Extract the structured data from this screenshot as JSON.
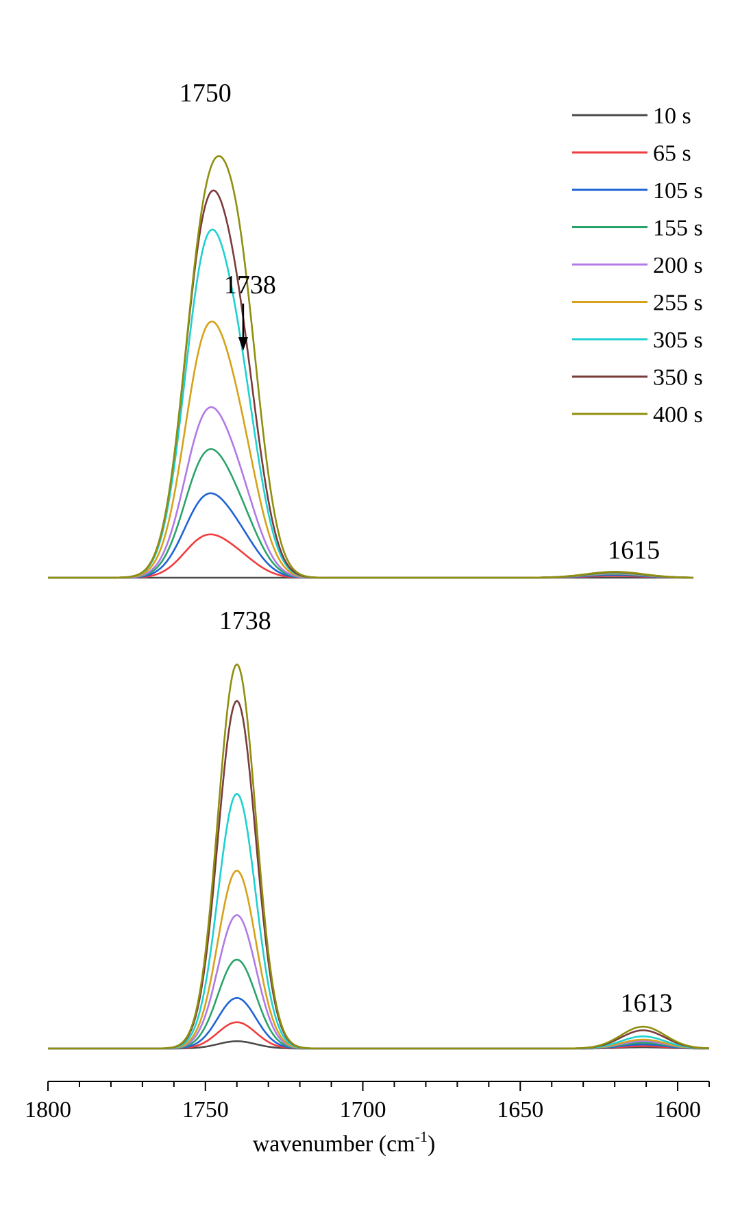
{
  "chart_data": {
    "type": "line",
    "title": "",
    "xlabel": "wavenumber (cm",
    "xlabel_sup": "-1",
    "xlabel_close": ")",
    "ylabel": "",
    "xlim": [
      1800,
      1590
    ],
    "x_reversed": true,
    "x_ticks": [
      1800,
      1750,
      1700,
      1650,
      1600
    ],
    "x_tick_labels": [
      "1800",
      "1750",
      "1700",
      "1650",
      "1600"
    ],
    "grid": false,
    "legend_position": "top-right",
    "series": [
      {
        "name": "10 s",
        "color": "#4a4a4a"
      },
      {
        "name": "65 s",
        "color": "#f03c3c"
      },
      {
        "name": "105 s",
        "color": "#1f63d6"
      },
      {
        "name": "155 s",
        "color": "#2aa36a"
      },
      {
        "name": "200 s",
        "color": "#b07ae6"
      },
      {
        "name": "255 s",
        "color": "#d6a21a"
      },
      {
        "name": "305 s",
        "color": "#1fd0d0"
      },
      {
        "name": "350 s",
        "color": "#7a3b3b"
      },
      {
        "name": "400 s",
        "color": "#8f8f0e"
      }
    ],
    "panels": [
      {
        "name": "top",
        "ylim": [
          0,
          1.0
        ],
        "peak_labels": [
          {
            "text": "1750",
            "x": 1750
          },
          {
            "text": "1738",
            "x": 1738,
            "arrow": true
          },
          {
            "text": "1615",
            "x": 1615
          }
        ],
        "components": [
          {
            "center": 1750,
            "width": 7.0,
            "amplitudes": [
              0.0,
              0.085,
              0.165,
              0.25,
              0.33,
              0.49,
              0.66,
              0.72,
              0.72
            ]
          },
          {
            "center": 1739,
            "width": 6.5,
            "amplitudes": [
              0.0,
              0.035,
              0.07,
              0.11,
              0.15,
              0.24,
              0.34,
              0.41,
              0.56
            ]
          },
          {
            "center": 1620,
            "width": 9.0,
            "amplitudes": [
              0.0,
              0.004,
              0.006,
              0.008,
              0.009,
              0.01,
              0.011,
              0.012,
              0.013
            ]
          }
        ]
      },
      {
        "name": "bottom",
        "ylim": [
          0,
          1.0
        ],
        "peak_labels": [
          {
            "text": "1738",
            "x": 1740
          },
          {
            "text": "1613",
            "x": 1611
          }
        ],
        "components": [
          {
            "center": 1740,
            "width": 6.0,
            "amplitudes": [
              0.018,
              0.065,
              0.125,
              0.22,
              0.33,
              0.44,
              0.63,
              0.86,
              0.95
            ]
          },
          {
            "center": 1611,
            "width": 7.0,
            "amplitudes": [
              0.003,
              0.006,
              0.01,
              0.014,
              0.018,
              0.022,
              0.03,
              0.045,
              0.054
            ]
          }
        ]
      }
    ]
  }
}
